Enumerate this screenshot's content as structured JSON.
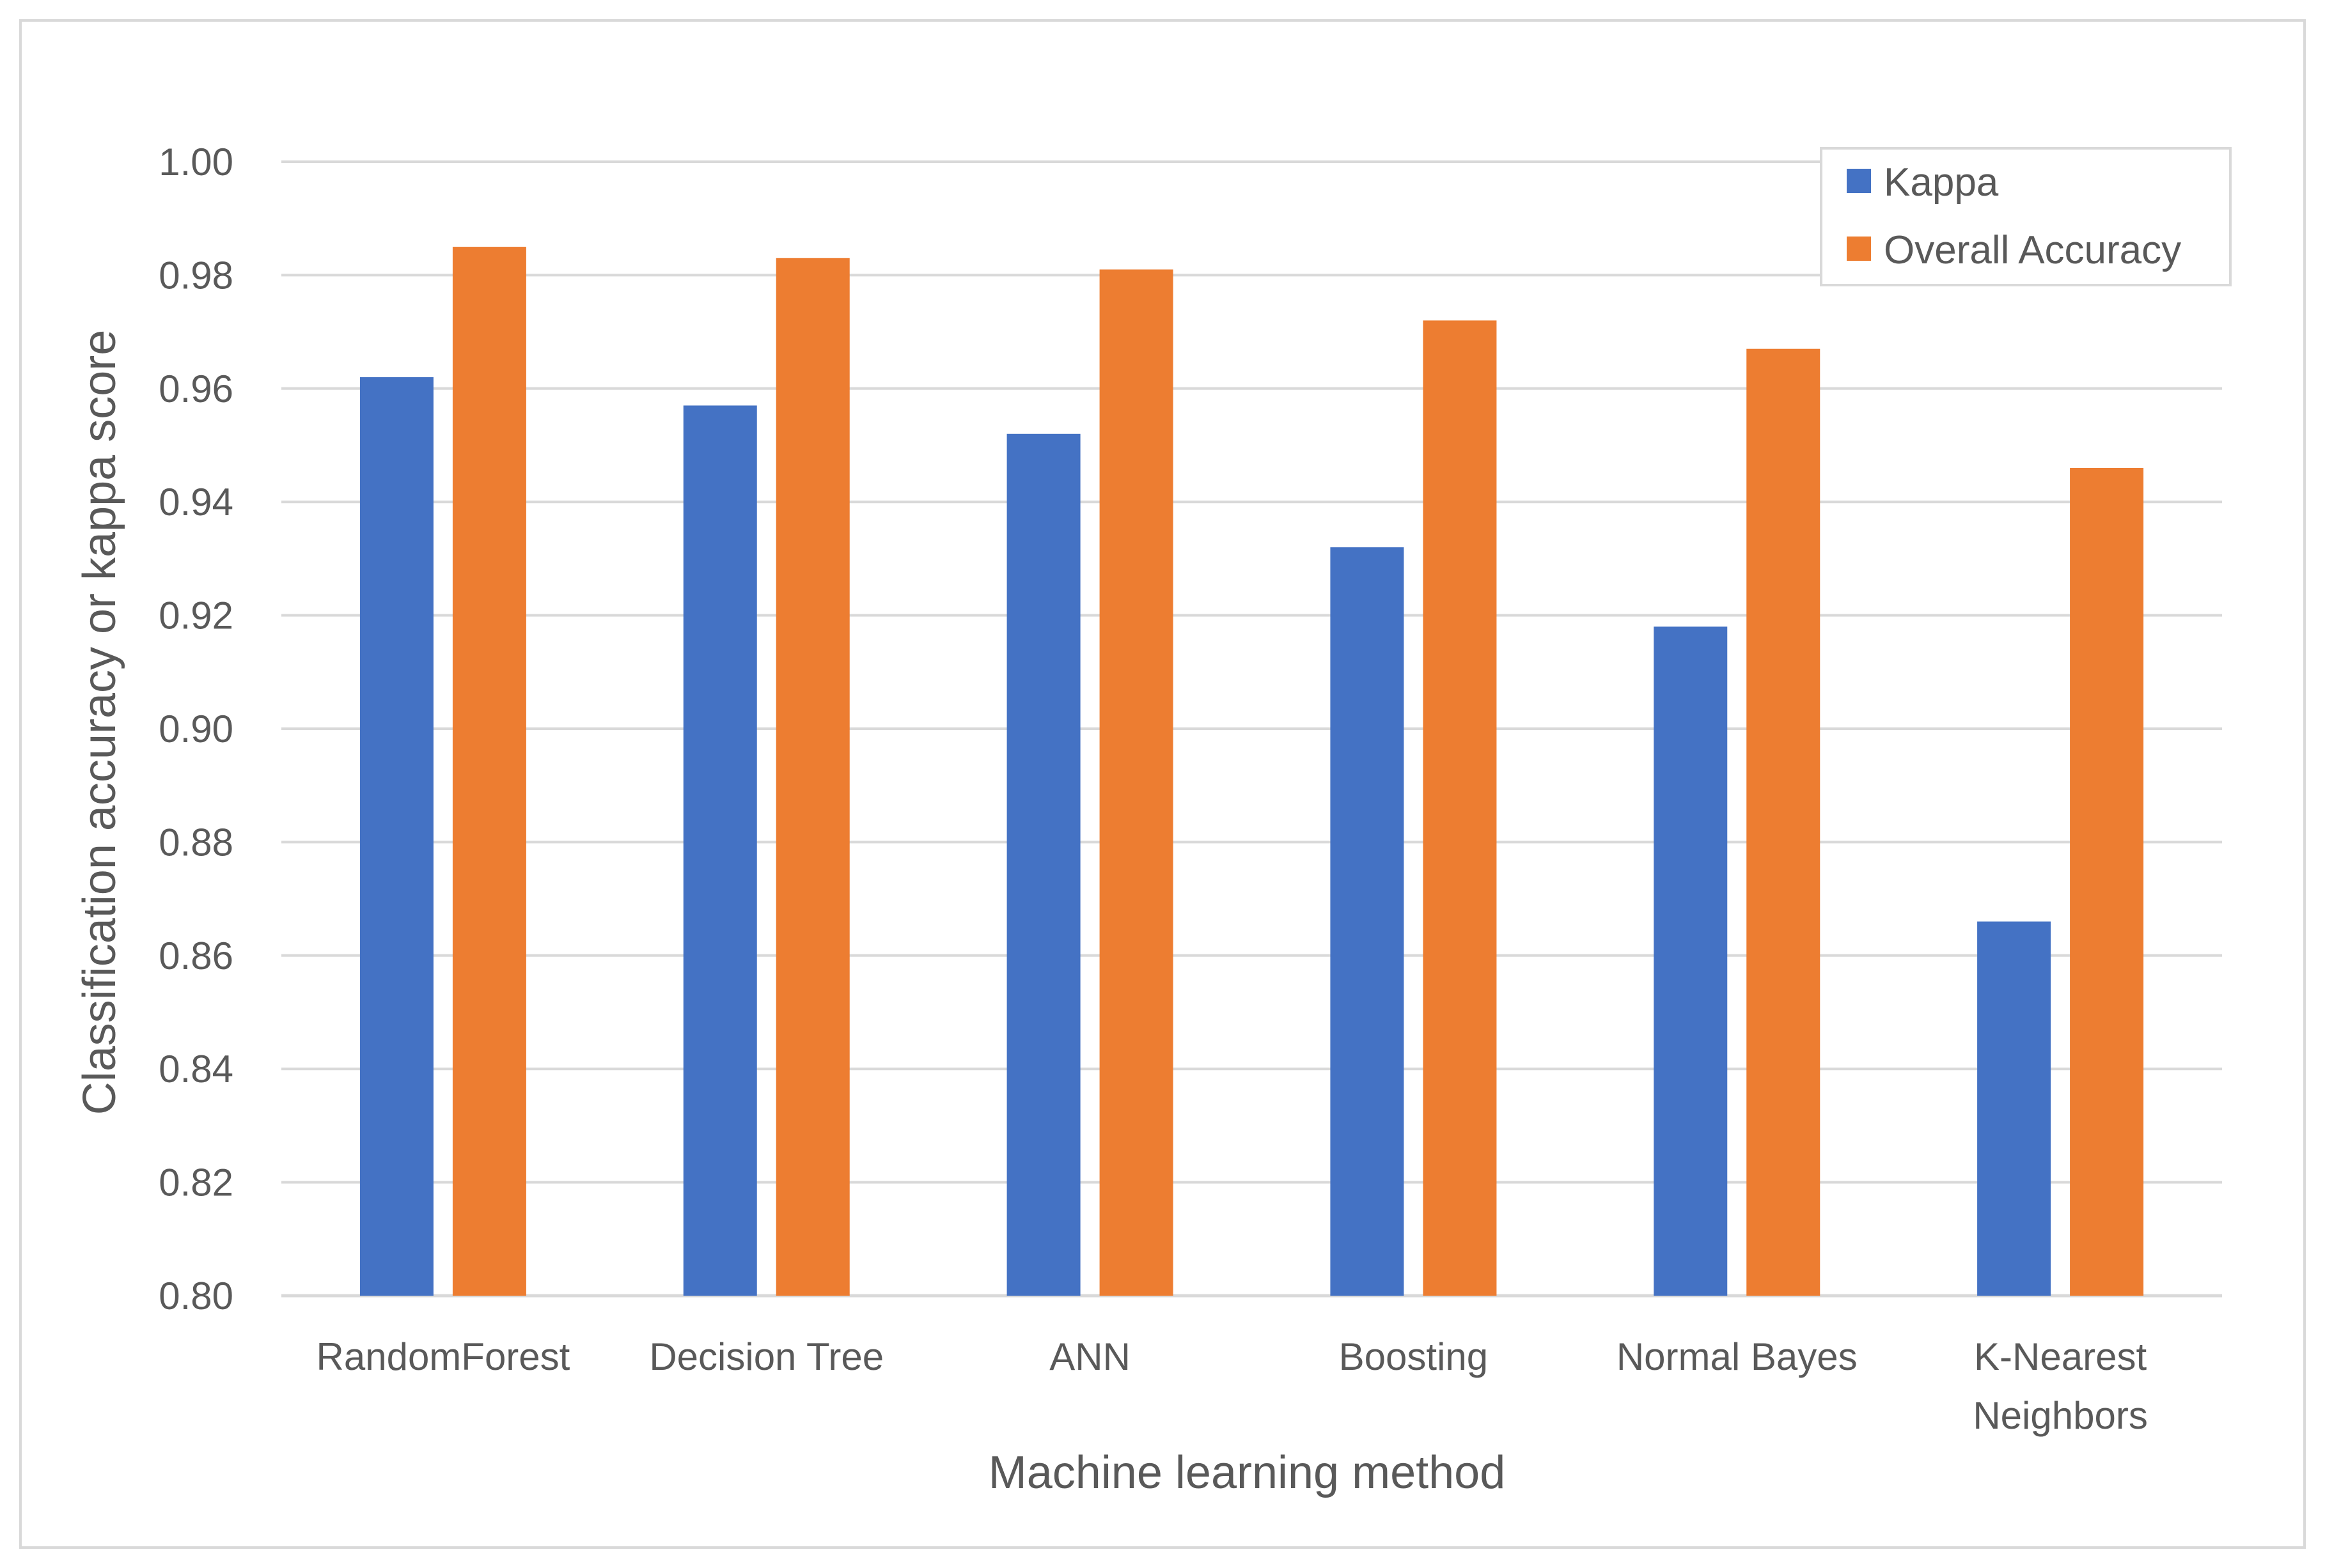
{
  "chart_data": {
    "type": "bar",
    "title": "",
    "xlabel": "Machine learning method",
    "ylabel": "Classification accuracy or kappa score",
    "ylim": [
      0.8,
      1.0
    ],
    "yticks": [
      "0.80",
      "0.82",
      "0.84",
      "0.86",
      "0.88",
      "0.90",
      "0.92",
      "0.94",
      "0.96",
      "0.98",
      "1.00"
    ],
    "grid": true,
    "legend_position": "top-right",
    "categories": [
      [
        "RandomForest"
      ],
      [
        "Decision Tree"
      ],
      [
        "ANN"
      ],
      [
        "Boosting"
      ],
      [
        "Normal Bayes"
      ],
      [
        "K-Nearest",
        "Neighbors"
      ]
    ],
    "series": [
      {
        "name": "Kappa",
        "color": "#4472C4",
        "values": [
          0.962,
          0.957,
          0.952,
          0.932,
          0.918,
          0.866
        ]
      },
      {
        "name": "Overall Accuracy",
        "color": "#ED7D31",
        "values": [
          0.985,
          0.983,
          0.981,
          0.972,
          0.967,
          0.946
        ]
      }
    ]
  }
}
